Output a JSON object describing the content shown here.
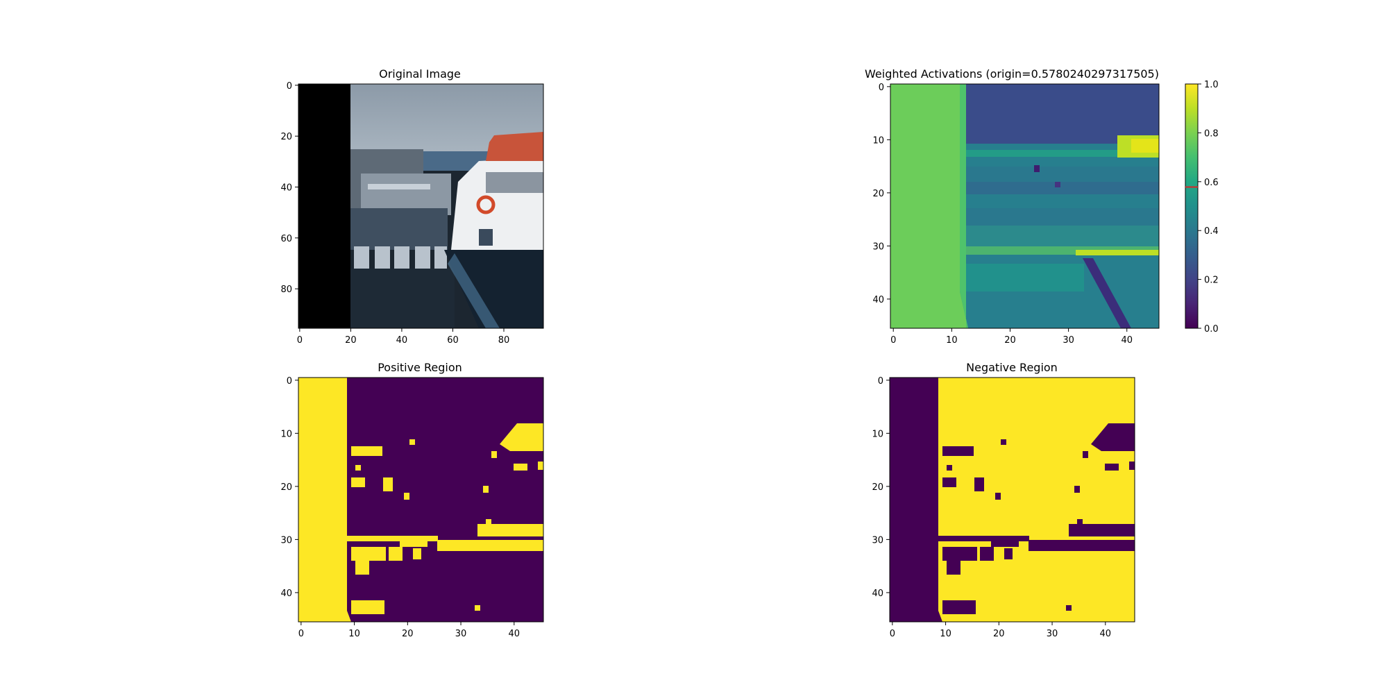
{
  "figure": {
    "panels": [
      {
        "id": "original",
        "title": "Original Image"
      },
      {
        "id": "weighted",
        "title": "Weighted Activations (origin=0.5780240297317505)"
      },
      {
        "id": "positive",
        "title": "Positive Region"
      },
      {
        "id": "negative",
        "title": "Negative Region"
      }
    ]
  },
  "colorbar": {
    "ticks": [
      "0.0",
      "0.2",
      "0.4",
      "0.6",
      "0.8",
      "1.0"
    ],
    "origin_marker": 0.5780240297317505,
    "origin_marker_color": "#d62728",
    "colormap": "viridis"
  },
  "chart_data": [
    {
      "type": "heatmap",
      "title": "Original Image",
      "content": "RGB photo (boats at a harbour); columns 0–20 blacked out",
      "xticks": [
        "0",
        "20",
        "40",
        "60",
        "80"
      ],
      "yticks": [
        "0",
        "20",
        "40",
        "60",
        "80"
      ],
      "xlim": [
        0,
        96
      ],
      "ylim": [
        96,
        0
      ]
    },
    {
      "type": "heatmap",
      "title": "Weighted Activations (origin=0.5780240297317505)",
      "colormap": "viridis",
      "grid_size": [
        46,
        46
      ],
      "vmin": 0.0,
      "vmax": 1.0,
      "origin": 0.5780240297317505,
      "xticks": [
        "0",
        "10",
        "20",
        "30",
        "40"
      ],
      "yticks": [
        "0",
        "10",
        "20",
        "30",
        "40"
      ]
    },
    {
      "type": "heatmap",
      "title": "Positive Region",
      "colormap": "viridis",
      "grid_size": [
        46,
        46
      ],
      "values_note": "binary mask: activation > origin",
      "xticks": [
        "0",
        "10",
        "20",
        "30",
        "40"
      ],
      "yticks": [
        "0",
        "10",
        "20",
        "30",
        "40"
      ]
    },
    {
      "type": "heatmap",
      "title": "Negative Region",
      "colormap": "viridis",
      "grid_size": [
        46,
        46
      ],
      "values_note": "binary mask: complement of positive region",
      "xticks": [
        "0",
        "10",
        "20",
        "30",
        "40"
      ],
      "yticks": [
        "0",
        "10",
        "20",
        "30",
        "40"
      ]
    }
  ]
}
